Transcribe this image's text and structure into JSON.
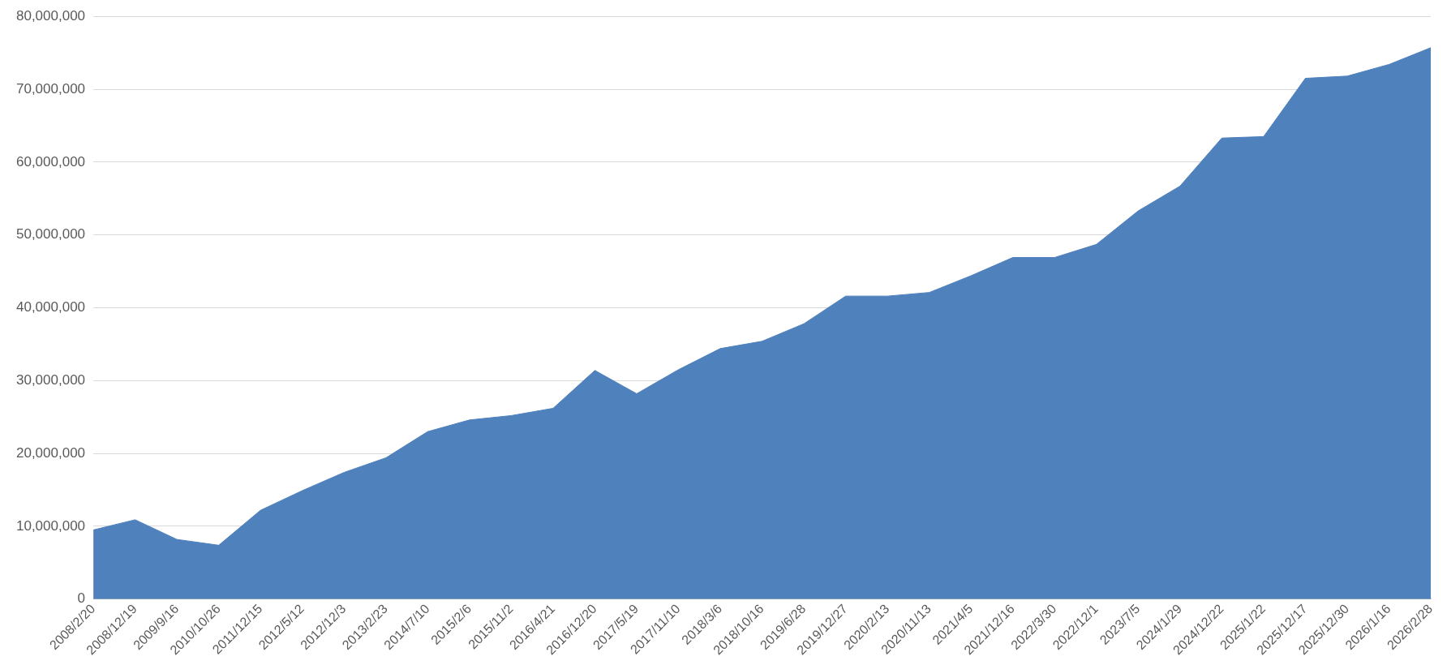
{
  "chart_data": {
    "type": "area",
    "categories": [
      "2008/2/20",
      "2008/12/19",
      "2009/9/16",
      "2010/10/26",
      "2011/12/15",
      "2012/5/12",
      "2012/12/3",
      "2013/2/23",
      "2014/7/10",
      "2015/2/6",
      "2015/11/2",
      "2016/4/21",
      "2016/12/20",
      "2017/5/19",
      "2017/11/10",
      "2018/3/6",
      "2018/10/16",
      "2019/6/28",
      "2019/12/27",
      "2020/2/13",
      "2020/11/13",
      "2021/4/5",
      "2021/12/16",
      "2022/3/30",
      "2022/12/1",
      "2023/7/5",
      "2024/1/29",
      "2024/12/22",
      "2025/1/22",
      "2025/12/17",
      "2025/12/30",
      "2026/1/16",
      "2026/2/28"
    ],
    "series": [
      {
        "color": "#4f81bd",
        "values": [
          9500000,
          10900000,
          8200000,
          7400000,
          12200000,
          14900000,
          17400000,
          19400000,
          23000000,
          24600000,
          25200000,
          26200000,
          31400000,
          28200000,
          31500000,
          34400000,
          35400000,
          37800000,
          41600000,
          41600000,
          42100000,
          44400000,
          46900000,
          46900000,
          48700000,
          53300000,
          56700000,
          63300000,
          63500000,
          71500000,
          71800000,
          73400000,
          75700000
        ]
      }
    ],
    "ylim": [
      0,
      80000000
    ],
    "yticks": [
      0,
      {
        "value": 10000000,
        "label": "10,000,000"
      },
      {
        "value": 20000000,
        "label": "20,000,000"
      },
      {
        "value": 30000000,
        "label": "30,000,000"
      },
      {
        "value": 40000000,
        "label": "40,000,000"
      },
      {
        "value": 50000000,
        "label": "50,000,000"
      },
      {
        "value": 60000000,
        "label": "60,000,000"
      },
      {
        "value": 70000000,
        "label": "70,000,000"
      },
      {
        "value": 80000000,
        "label": "80,000,000"
      }
    ],
    "grid": "y",
    "legend": false
  }
}
